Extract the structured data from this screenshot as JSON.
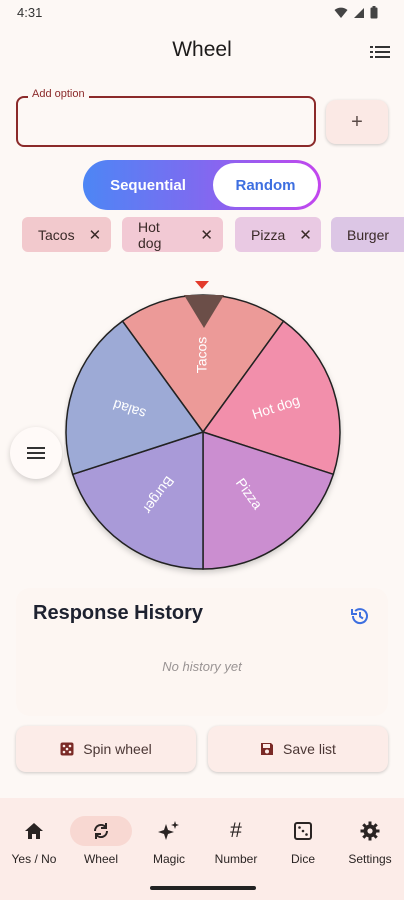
{
  "status": {
    "time": "4:31"
  },
  "app": {
    "title": "Wheel"
  },
  "input": {
    "label": "Add option",
    "value": "",
    "add_symbol": "+"
  },
  "mode": {
    "options": [
      "Sequential",
      "Random"
    ],
    "selected": "Random"
  },
  "chips": [
    {
      "label": "Tacos",
      "color": "#f2c9cd"
    },
    {
      "label": "Hot dog",
      "color": "#f2c9d4"
    },
    {
      "label": "Pizza",
      "color": "#e9c9e3"
    },
    {
      "label": "Burger",
      "color": "#dcc6e5"
    }
  ],
  "wheel": {
    "segments": [
      {
        "label": "Tacos",
        "color": "#ec9a98"
      },
      {
        "label": "Hot dog",
        "color": "#f28fab"
      },
      {
        "label": "Pizza",
        "color": "#cb8ed0"
      },
      {
        "label": "Burger",
        "color": "#a99ad8"
      },
      {
        "label": "salad",
        "color": "#9daad6"
      }
    ],
    "pointer_color": "#e33b2c"
  },
  "history": {
    "title": "Response History",
    "empty_text": "No history yet"
  },
  "actions": {
    "spin": "Spin wheel",
    "save": "Save list"
  },
  "nav": [
    {
      "label": "Yes / No",
      "icon": "home-icon",
      "active": false
    },
    {
      "label": "Wheel",
      "icon": "sync-icon",
      "active": true
    },
    {
      "label": "Magic",
      "icon": "sparkle-icon",
      "active": false
    },
    {
      "label": "Number",
      "icon": "hash-icon",
      "active": false
    },
    {
      "label": "Dice",
      "icon": "dice-icon",
      "active": false
    },
    {
      "label": "Settings",
      "icon": "gear-icon",
      "active": false
    }
  ]
}
